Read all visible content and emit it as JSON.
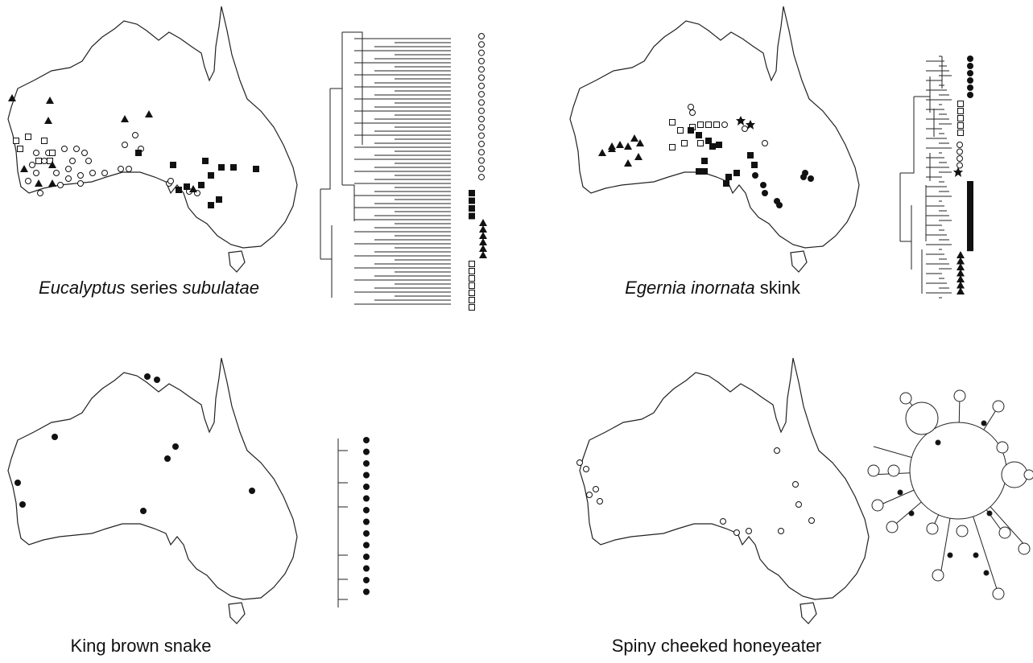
{
  "panels": [
    {
      "caption": [
        "Eucalyptus",
        " series ",
        "subulatae"
      ]
    },
    {
      "caption": [
        "Egernia inornata",
        " skink"
      ]
    },
    {
      "caption": [
        "King brown snake"
      ]
    },
    {
      "caption": [
        "Spiny cheeked honeyeater"
      ]
    }
  ]
}
